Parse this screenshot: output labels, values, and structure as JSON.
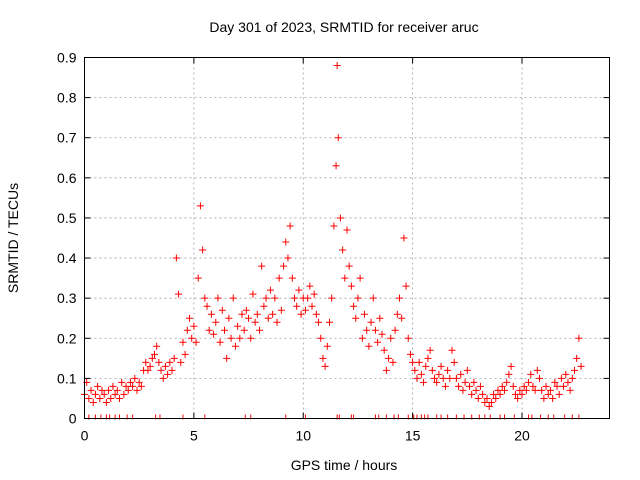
{
  "chart_data": {
    "type": "scatter",
    "title": "Day 301 of 2023, SRMTID for receiver aruc",
    "xlabel": "GPS time / hours",
    "ylabel": "SRMTID / TECUs",
    "xlim": [
      0,
      24
    ],
    "ylim": [
      0,
      0.9
    ],
    "xticks": [
      0,
      5,
      10,
      15,
      20
    ],
    "xtick_labels": [
      "0",
      "5",
      "10",
      "15",
      "20"
    ],
    "yticks": [
      0,
      0.1,
      0.2,
      0.3,
      0.4,
      0.5,
      0.6,
      0.7,
      0.8,
      0.9
    ],
    "ytick_labels": [
      "0",
      "0.1",
      "0.2",
      "0.3",
      "0.4",
      "0.5",
      "0.6",
      "0.7",
      "0.8",
      "0.9"
    ],
    "grid": true,
    "marker": "+",
    "color": "#ff0000",
    "series": [
      {
        "name": "SRMTID",
        "x": [
          0.0,
          0.1,
          0.2,
          0.3,
          0.4,
          0.5,
          0.6,
          0.7,
          0.8,
          0.9,
          1.0,
          1.1,
          1.2,
          1.3,
          1.4,
          1.5,
          1.6,
          1.7,
          1.8,
          1.9,
          2.0,
          2.1,
          2.2,
          2.3,
          2.4,
          2.5,
          2.6,
          2.7,
          2.8,
          2.9,
          3.0,
          3.1,
          3.2,
          3.3,
          3.4,
          3.5,
          3.6,
          3.7,
          3.8,
          3.9,
          4.0,
          4.1,
          4.2,
          4.3,
          4.4,
          4.5,
          4.6,
          4.7,
          4.8,
          4.9,
          5.0,
          5.1,
          5.2,
          5.3,
          5.4,
          5.5,
          5.6,
          5.7,
          5.8,
          5.9,
          6.0,
          6.1,
          6.2,
          6.3,
          6.4,
          6.5,
          6.6,
          6.7,
          6.8,
          6.9,
          7.0,
          7.1,
          7.2,
          7.3,
          7.4,
          7.5,
          7.6,
          7.7,
          7.8,
          7.9,
          8.0,
          8.1,
          8.2,
          8.3,
          8.4,
          8.5,
          8.6,
          8.7,
          8.8,
          8.9,
          9.0,
          9.1,
          9.2,
          9.3,
          9.4,
          9.5,
          9.6,
          9.7,
          9.8,
          9.9,
          10.0,
          10.1,
          10.2,
          10.3,
          10.4,
          10.5,
          10.6,
          10.7,
          10.8,
          10.9,
          11.0,
          11.1,
          11.2,
          11.3,
          11.4,
          11.5,
          11.55,
          11.6,
          11.7,
          11.8,
          11.9,
          12.0,
          12.1,
          12.2,
          12.3,
          12.4,
          12.5,
          12.6,
          12.7,
          12.8,
          12.9,
          13.0,
          13.1,
          13.2,
          13.3,
          13.4,
          13.5,
          13.6,
          13.7,
          13.8,
          13.9,
          14.0,
          14.1,
          14.2,
          14.3,
          14.4,
          14.5,
          14.6,
          14.7,
          14.8,
          14.9,
          15.0,
          15.1,
          15.2,
          15.3,
          15.4,
          15.5,
          15.6,
          15.7,
          15.8,
          15.9,
          16.0,
          16.1,
          16.2,
          16.3,
          16.4,
          16.5,
          16.6,
          16.7,
          16.8,
          16.9,
          17.0,
          17.1,
          17.2,
          17.3,
          17.4,
          17.5,
          17.6,
          17.7,
          17.8,
          17.9,
          18.0,
          18.1,
          18.2,
          18.3,
          18.4,
          18.5,
          18.6,
          18.7,
          18.8,
          18.9,
          19.0,
          19.1,
          19.2,
          19.3,
          19.4,
          19.5,
          19.6,
          19.7,
          19.8,
          19.9,
          20.0,
          20.1,
          20.2,
          20.3,
          20.4,
          20.5,
          20.6,
          20.7,
          20.8,
          20.9,
          21.0,
          21.1,
          21.2,
          21.3,
          21.4,
          21.5,
          21.6,
          21.7,
          21.8,
          21.9,
          22.0,
          22.1,
          22.2,
          22.3,
          22.4,
          22.5,
          22.6,
          22.7
        ],
        "y": [
          0.06,
          0.09,
          0.05,
          0.07,
          0.04,
          0.06,
          0.08,
          0.05,
          0.07,
          0.06,
          0.04,
          0.07,
          0.05,
          0.08,
          0.06,
          0.07,
          0.05,
          0.09,
          0.06,
          0.08,
          0.07,
          0.09,
          0.08,
          0.1,
          0.07,
          0.09,
          0.08,
          0.12,
          0.14,
          0.12,
          0.13,
          0.15,
          0.16,
          0.18,
          0.14,
          0.12,
          0.1,
          0.13,
          0.11,
          0.14,
          0.12,
          0.15,
          0.4,
          0.31,
          0.14,
          0.19,
          0.16,
          0.22,
          0.25,
          0.2,
          0.23,
          0.19,
          0.35,
          0.53,
          0.42,
          0.3,
          0.28,
          0.22,
          0.26,
          0.21,
          0.24,
          0.3,
          0.19,
          0.27,
          0.22,
          0.15,
          0.25,
          0.2,
          0.3,
          0.18,
          0.23,
          0.2,
          0.26,
          0.22,
          0.27,
          0.25,
          0.2,
          0.31,
          0.24,
          0.26,
          0.22,
          0.38,
          0.28,
          0.3,
          0.25,
          0.32,
          0.26,
          0.3,
          0.24,
          0.35,
          0.27,
          0.38,
          0.44,
          0.4,
          0.48,
          0.35,
          0.3,
          0.28,
          0.32,
          0.26,
          0.3,
          0.27,
          0.3,
          0.33,
          0.28,
          0.31,
          0.26,
          0.24,
          0.2,
          0.15,
          0.13,
          0.18,
          0.24,
          0.3,
          0.48,
          0.63,
          0.88,
          0.7,
          0.5,
          0.42,
          0.35,
          0.47,
          0.38,
          0.33,
          0.28,
          0.25,
          0.3,
          0.35,
          0.2,
          0.26,
          0.22,
          0.18,
          0.24,
          0.3,
          0.22,
          0.19,
          0.25,
          0.21,
          0.17,
          0.12,
          0.15,
          0.2,
          0.14,
          0.22,
          0.26,
          0.3,
          0.25,
          0.45,
          0.33,
          0.2,
          0.16,
          0.14,
          0.12,
          0.1,
          0.14,
          0.11,
          0.09,
          0.13,
          0.15,
          0.17,
          0.12,
          0.1,
          0.09,
          0.11,
          0.13,
          0.1,
          0.08,
          0.12,
          0.1,
          0.17,
          0.14,
          0.1,
          0.08,
          0.11,
          0.07,
          0.09,
          0.12,
          0.08,
          0.06,
          0.09,
          0.07,
          0.05,
          0.08,
          0.06,
          0.04,
          0.05,
          0.03,
          0.04,
          0.06,
          0.05,
          0.07,
          0.06,
          0.08,
          0.07,
          0.09,
          0.11,
          0.13,
          0.08,
          0.06,
          0.05,
          0.07,
          0.06,
          0.08,
          0.07,
          0.09,
          0.11,
          0.08,
          0.07,
          0.12,
          0.1,
          0.07,
          0.05,
          0.08,
          0.06,
          0.07,
          0.05,
          0.09,
          0.08,
          0.06,
          0.1,
          0.08,
          0.11,
          0.09,
          0.07,
          0.1,
          0.12,
          0.15,
          0.2,
          0.13
        ],
        "zero_x": [
          0.2,
          0.5,
          0.75,
          1.0,
          1.15,
          1.4,
          1.6,
          1.95,
          2.2,
          3.25,
          3.45,
          4.5,
          5.5,
          7.35,
          7.6,
          9.2,
          10.1,
          11.55,
          11.65,
          12.2,
          12.3,
          13.3,
          13.45,
          13.8,
          14.15,
          14.35,
          14.8,
          15.05,
          15.2,
          15.4,
          15.55,
          15.7,
          16.1,
          16.3,
          16.6,
          17.0,
          17.35,
          17.7,
          18.05,
          18.3,
          18.55,
          19.0,
          19.2,
          19.65,
          20.3,
          20.45,
          20.85,
          21.2,
          21.45,
          21.95,
          22.3,
          22.6
        ]
      }
    ]
  }
}
